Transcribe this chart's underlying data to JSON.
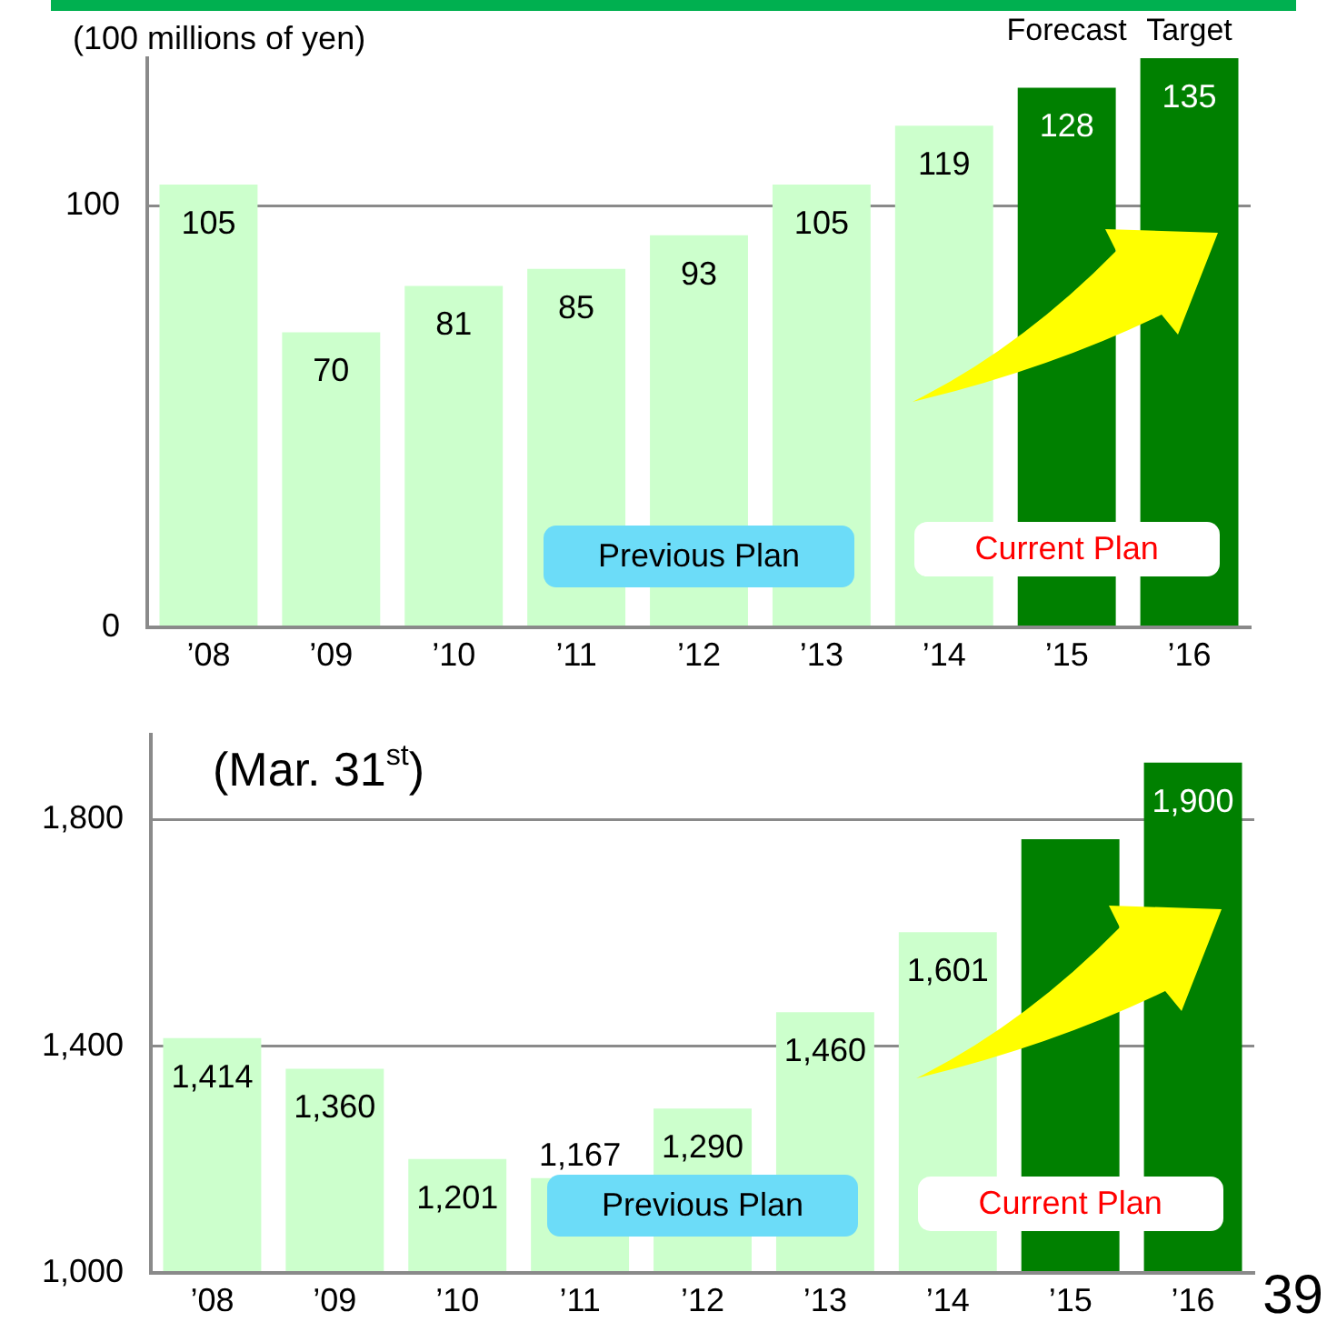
{
  "chart_data": [
    {
      "type": "bar",
      "ylabel": "(100 millions of yen)",
      "categories": [
        "’08",
        "’09",
        "’10",
        "’11",
        "’12",
        "’13",
        "’14",
        "’15",
        "’16"
      ],
      "values": [
        105,
        70,
        81,
        85,
        93,
        105,
        119,
        128,
        135
      ],
      "colors": [
        "#ccffcc",
        "#ccffcc",
        "#ccffcc",
        "#ccffcc",
        "#ccffcc",
        "#ccffcc",
        "#ccffcc",
        "#008000",
        "#008000"
      ],
      "ylim": [
        0,
        135
      ],
      "yticks": [
        0,
        100
      ],
      "grid": "y",
      "data_labels": true,
      "annotations": [
        "Forecast",
        "Target",
        "Previous Plan",
        "Current Plan"
      ]
    },
    {
      "type": "bar",
      "title": "(Mar. 31$^{st}$)",
      "categories": [
        "’08",
        "’09",
        "’10",
        "’11",
        "’12",
        "’13",
        "’14",
        "’15",
        "’16"
      ],
      "values": [
        1414,
        1360,
        1201,
        1167,
        1290,
        1460,
        1601,
        1765,
        1900
      ],
      "colors": [
        "#ccffcc",
        "#ccffcc",
        "#ccffcc",
        "#ccffcc",
        "#ccffcc",
        "#ccffcc",
        "#ccffcc",
        "#008000",
        "#008000"
      ],
      "ylim": [
        1000,
        1950
      ],
      "yticks": [
        {
          "value": 1000,
          "label": "1,000"
        },
        {
          "value": 1400,
          "label": "1,400"
        },
        {
          "value": 1800,
          "label": "1,800"
        }
      ],
      "grid": "y",
      "value_labels": [
        "1,414",
        "1,360",
        "1,201",
        "1,167",
        "1,290",
        "1,460",
        "1,601",
        null,
        "1,900"
      ],
      "annotations": [
        "Previous Plan",
        "Current Plan",
        "39"
      ]
    }
  ]
}
